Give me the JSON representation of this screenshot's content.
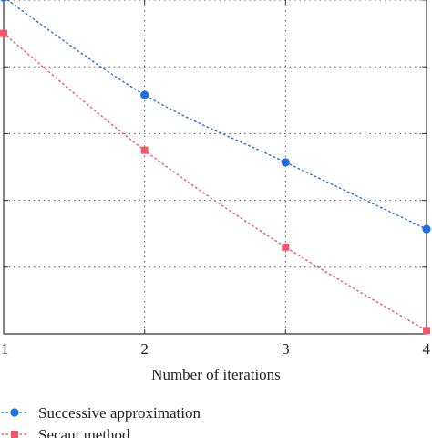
{
  "chart_data": {
    "type": "line",
    "title": "",
    "xlabel": "Number of iterations",
    "ylabel": "",
    "x": [
      1,
      2,
      3,
      4
    ],
    "xlim": [
      1,
      4
    ],
    "ylim": [
      0,
      5
    ],
    "grid": true,
    "legend_placement": "bottom",
    "series": [
      {
        "name": "Successive approximation",
        "values": [
          5.04,
          3.58,
          2.57,
          1.57
        ],
        "color": "#1f6fe0",
        "marker": "circle",
        "line_style": "dotted"
      },
      {
        "name": "Secant method",
        "values": [
          4.5,
          2.75,
          1.3,
          0.05
        ],
        "color": "#f0576a",
        "marker": "square",
        "line_style": "dotted"
      }
    ]
  }
}
